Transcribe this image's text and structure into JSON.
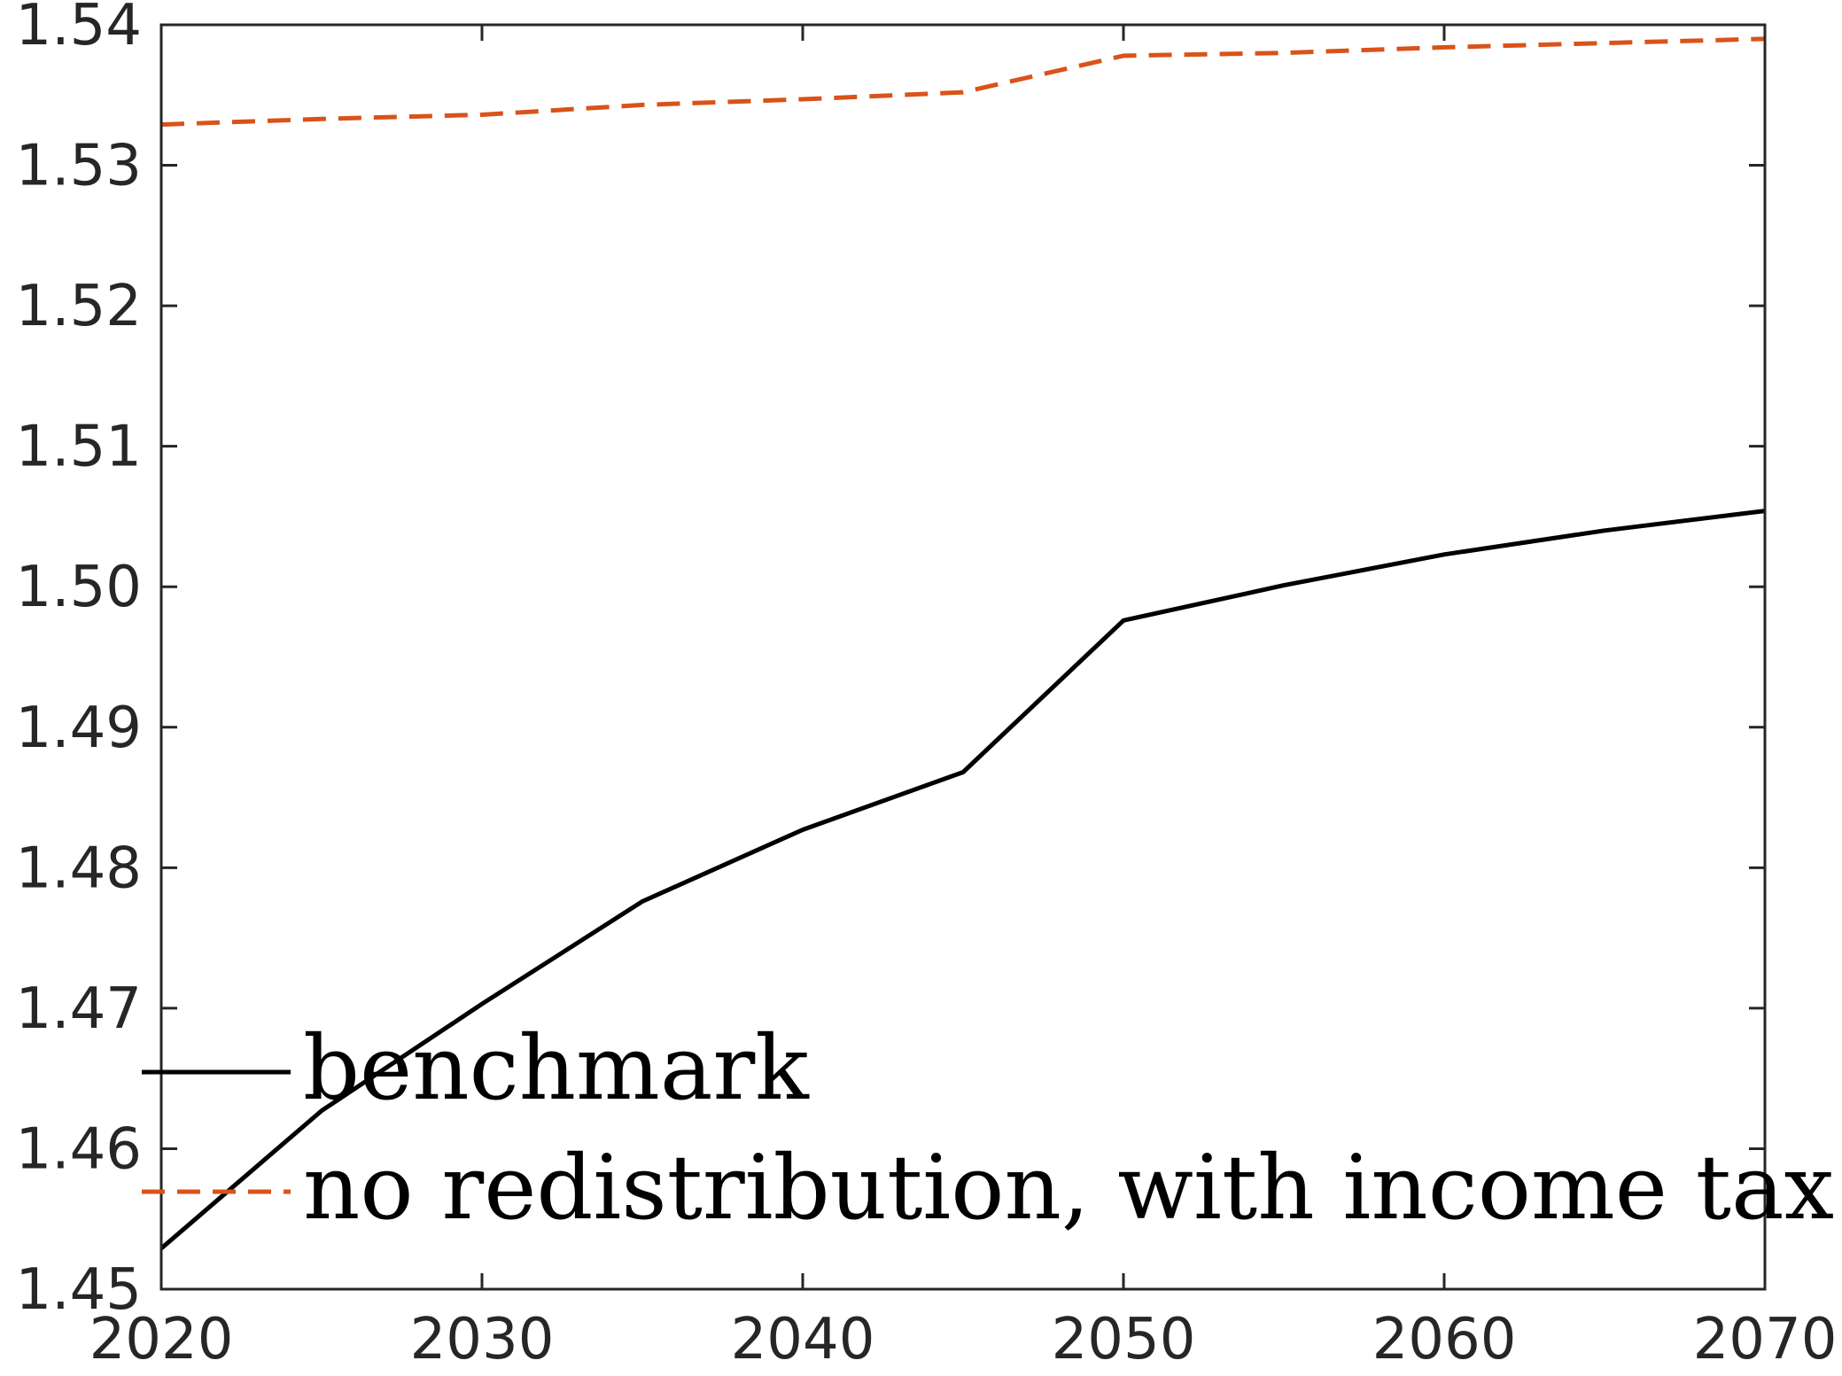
{
  "chart_data": {
    "type": "line",
    "title": "",
    "xlabel": "",
    "ylabel": "",
    "xlim": [
      2020,
      2070
    ],
    "ylim": [
      1.45,
      1.54
    ],
    "x_ticks": [
      2020,
      2030,
      2040,
      2050,
      2060,
      2070
    ],
    "x_tick_labels": [
      "2020",
      "2030",
      "2040",
      "2050",
      "2060",
      "2070"
    ],
    "y_ticks": [
      1.45,
      1.46,
      1.47,
      1.48,
      1.49,
      1.5,
      1.51,
      1.52,
      1.53,
      1.54
    ],
    "y_tick_labels": [
      "1.45",
      "1.46",
      "1.47",
      "1.48",
      "1.49",
      "1.50",
      "1.51",
      "1.52",
      "1.53",
      "1.54"
    ],
    "grid": false,
    "legend_position": "bottom-left",
    "series": [
      {
        "name": "benchmark",
        "color": "#000000",
        "style": "solid",
        "x": [
          2020,
          2025,
          2030,
          2035,
          2040,
          2045,
          2050,
          2055,
          2060,
          2065,
          2070
        ],
        "y": [
          1.4529,
          1.4627,
          1.4703,
          1.4776,
          1.4827,
          1.4868,
          1.4976,
          1.5001,
          1.5023,
          1.504,
          1.5054
        ]
      },
      {
        "name": "no redistribution, with income tax",
        "color": "#D95319",
        "style": "dashed",
        "x": [
          2020,
          2025,
          2030,
          2035,
          2040,
          2045,
          2050,
          2055,
          2060,
          2065,
          2070
        ],
        "y": [
          1.5329,
          1.5333,
          1.5336,
          1.5343,
          1.5347,
          1.5352,
          1.5378,
          1.538,
          1.5384,
          1.5387,
          1.539
        ]
      }
    ]
  }
}
